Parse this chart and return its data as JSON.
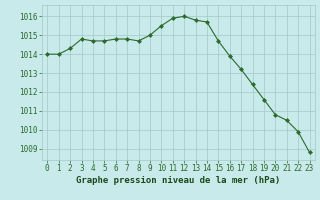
{
  "hours": [
    0,
    1,
    2,
    3,
    4,
    5,
    6,
    7,
    8,
    9,
    10,
    11,
    12,
    13,
    14,
    15,
    16,
    17,
    18,
    19,
    20,
    21,
    22,
    23
  ],
  "pressure": [
    1014.0,
    1014.0,
    1014.3,
    1014.8,
    1014.7,
    1014.7,
    1014.8,
    1014.8,
    1014.7,
    1015.0,
    1015.5,
    1015.9,
    1016.0,
    1015.8,
    1015.7,
    1014.7,
    1013.9,
    1013.2,
    1012.4,
    1011.6,
    1010.8,
    1010.5,
    1009.9,
    1008.8
  ],
  "line_color": "#2d6a2d",
  "marker": "D",
  "marker_size": 2.0,
  "bg_color": "#c8eaea",
  "grid_color": "#a0c8c8",
  "title": "Graphe pression niveau de la mer (hPa)",
  "title_color": "#1a4a1a",
  "ylabel_ticks": [
    1009,
    1010,
    1011,
    1012,
    1013,
    1014,
    1015,
    1016
  ],
  "ylim": [
    1008.4,
    1016.6
  ],
  "xlim": [
    -0.5,
    23.5
  ],
  "xlabel_ticks": [
    0,
    1,
    2,
    3,
    4,
    5,
    6,
    7,
    8,
    9,
    10,
    11,
    12,
    13,
    14,
    15,
    16,
    17,
    18,
    19,
    20,
    21,
    22,
    23
  ],
  "tick_fontsize": 5.5,
  "title_fontsize": 6.5
}
